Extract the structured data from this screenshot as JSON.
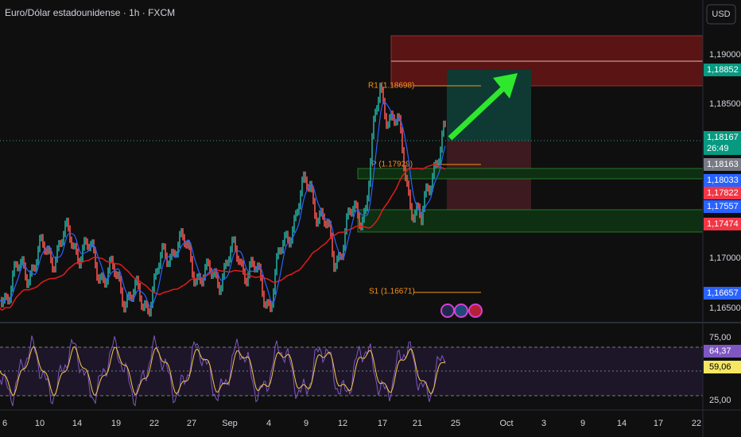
{
  "header": {
    "title": "Euro/Dólar estadounidense · 1h · FXCM",
    "currency": "USD"
  },
  "price_axis": {
    "labels": [
      "1,19000",
      "1,18500",
      "1,17000",
      "1,16500"
    ]
  },
  "price_tags": [
    "1,18852",
    "1,18167",
    "26:49",
    "1,18163",
    "1,18033",
    "1,17822",
    "1,17557",
    "1,17474",
    "1,16657"
  ],
  "pivots": {
    "r1": "R1 (1.18698)",
    "p": "P (1.17929)",
    "s1": "S1 (1.16671)"
  },
  "rsi_axis": {
    "labels": [
      "75,00",
      "25,00"
    ],
    "tags": [
      "64,37",
      "59,06"
    ]
  },
  "time_axis": {
    "labels": [
      "6",
      "10",
      "14",
      "19",
      "22",
      "27",
      "Sep",
      "4",
      "9",
      "12",
      "17",
      "21",
      "25",
      "Oct",
      "3",
      "9",
      "14",
      "17",
      "22"
    ]
  }
}
